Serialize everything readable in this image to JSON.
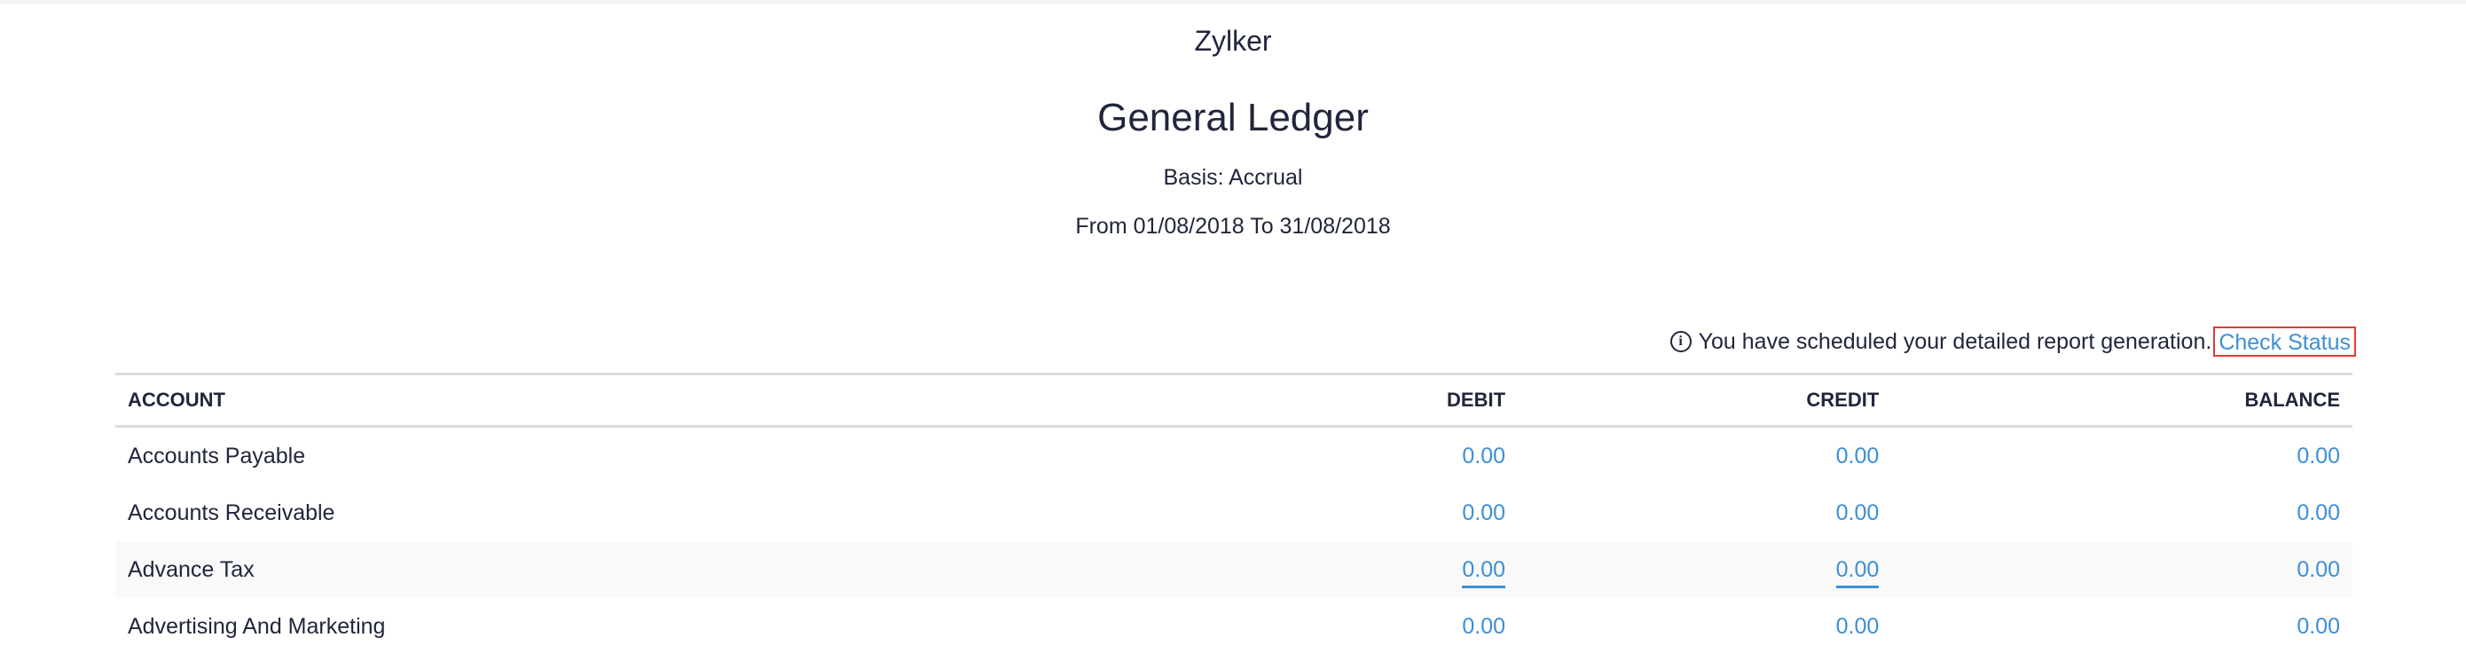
{
  "report": {
    "organization": "Zylker",
    "title": "General Ledger",
    "basis": "Basis: Accrual",
    "date_range": "From 01/08/2018 To 31/08/2018"
  },
  "notice": {
    "icon": "info-icon",
    "text": "You have scheduled your detailed report generation.",
    "link_label": "Check Status"
  },
  "table": {
    "columns": [
      "ACCOUNT",
      "DEBIT",
      "CREDIT",
      "BALANCE"
    ],
    "rows": [
      {
        "account": "Accounts Payable",
        "debit": "0.00",
        "credit": "0.00",
        "balance": "0.00"
      },
      {
        "account": "Accounts Receivable",
        "debit": "0.00",
        "credit": "0.00",
        "balance": "0.00"
      },
      {
        "account": "Advance Tax",
        "debit": "0.00",
        "credit": "0.00",
        "balance": "0.00"
      },
      {
        "account": "Advertising And Marketing",
        "debit": "0.00",
        "credit": "0.00",
        "balance": "0.00"
      }
    ]
  },
  "colors": {
    "link": "#3d8fd6",
    "highlight_box": "#e53935",
    "text": "#21263c",
    "hover_row": "#f9f9f9"
  }
}
